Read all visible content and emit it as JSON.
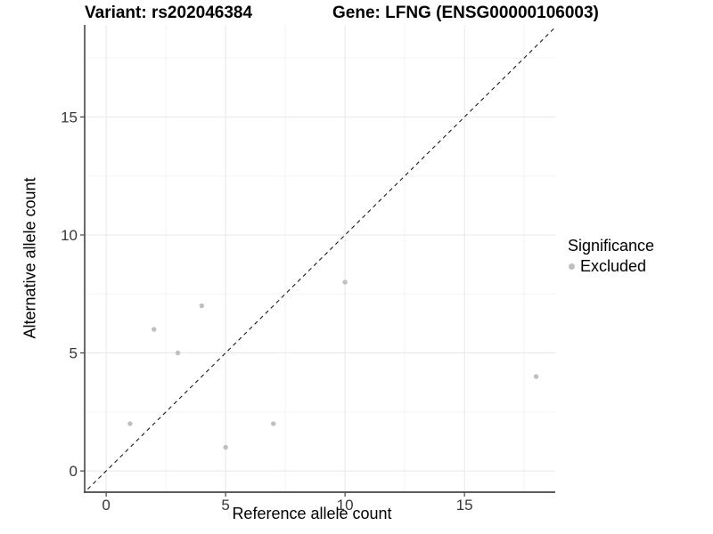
{
  "header": {
    "variant_title": "Variant: rs202046384",
    "gene_title": "Gene: LFNG (ENSG00000106003)"
  },
  "axes": {
    "x_label": "Reference allele count",
    "y_label": "Alternative allele count"
  },
  "legend": {
    "title": "Significance",
    "items": [
      {
        "label": "Excluded",
        "color": "#bfbfbf"
      }
    ]
  },
  "chart_data": {
    "type": "scatter",
    "title": "Variant: rs202046384 — Gene: LFNG (ENSG00000106003)",
    "xlabel": "Reference allele count",
    "ylabel": "Alternative allele count",
    "series": [
      {
        "name": "Excluded",
        "color": "#bfbfbf",
        "points": [
          {
            "x": 1,
            "y": 2
          },
          {
            "x": 2,
            "y": 6
          },
          {
            "x": 3,
            "y": 5
          },
          {
            "x": 4,
            "y": 7
          },
          {
            "x": 5,
            "y": 1
          },
          {
            "x": 7,
            "y": 2
          },
          {
            "x": 10,
            "y": 8
          },
          {
            "x": 18,
            "y": 4
          }
        ]
      }
    ],
    "reference_line": {
      "kind": "identity",
      "slope": 1,
      "intercept": 0,
      "style": "dashed",
      "color": "#1a1a1a"
    },
    "x_ticks": [
      0,
      5,
      10,
      15
    ],
    "y_ticks": [
      0,
      5,
      10,
      15
    ],
    "x_minor_ticks": [
      2.5,
      7.5,
      12.5,
      17.5
    ],
    "y_minor_ticks": [
      2.5,
      7.5,
      12.5,
      17.5
    ],
    "xlim": [
      -0.9,
      18.8
    ],
    "ylim": [
      -0.9,
      18.9
    ],
    "grid": "major+minor",
    "legend_position": "right"
  },
  "colors": {
    "point": "#bfbfbf",
    "grid_major": "#e8e8e8",
    "grid_minor": "#f3f3f3",
    "axis_line": "#454545",
    "tick_label": "#383838",
    "background": "#ffffff"
  }
}
